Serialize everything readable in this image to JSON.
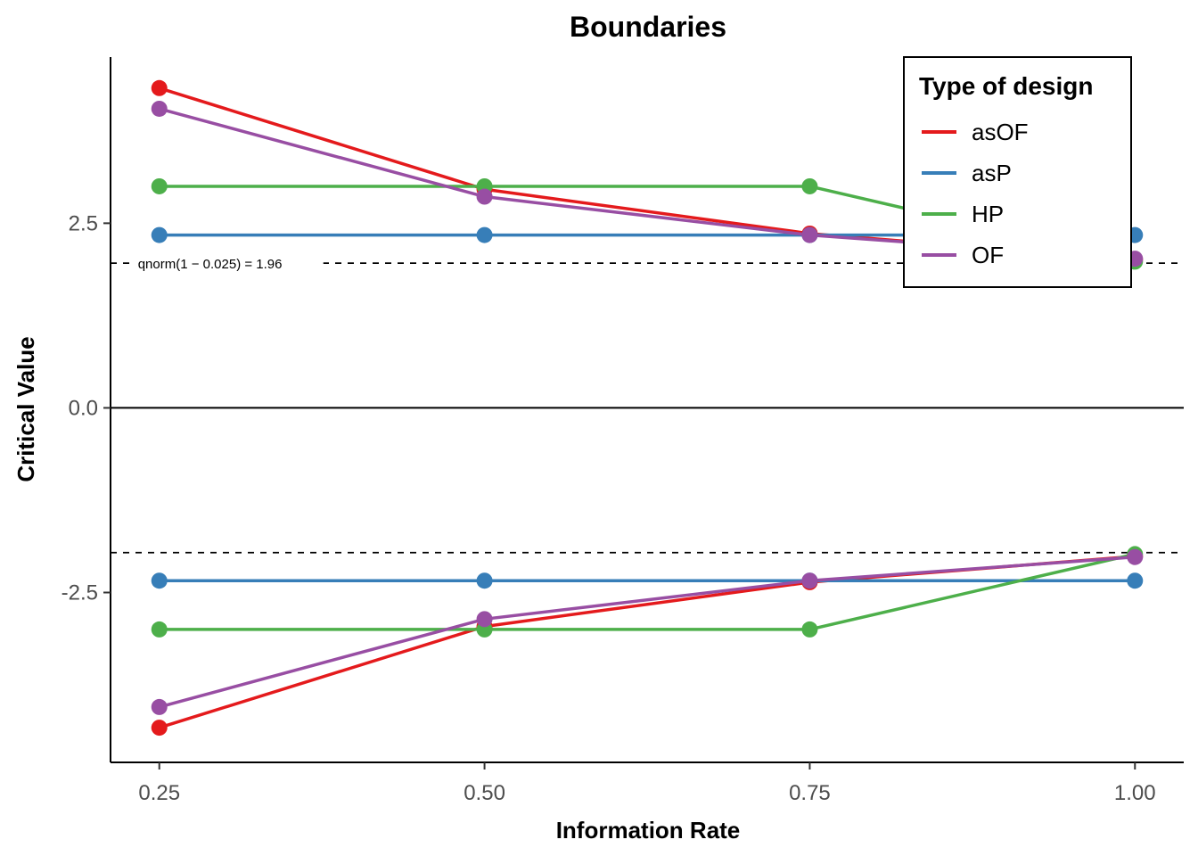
{
  "chart_data": {
    "type": "line",
    "title": "Boundaries",
    "xlabel": "Information Rate",
    "ylabel": "Critical Value",
    "x": [
      0.25,
      0.5,
      0.75,
      1.0
    ],
    "x_tick_labels": [
      "0.25",
      "0.50",
      "0.75",
      "1.00"
    ],
    "y_ticks": [
      2.5,
      0.0,
      -2.5
    ],
    "y_tick_labels": [
      "2.5",
      "0.0",
      "-2.5"
    ],
    "xlim": [
      0.2125,
      1.0375
    ],
    "ylim": [
      -4.8,
      4.75
    ],
    "grid": false,
    "legend": {
      "title": "Type of design",
      "placement": "top-right"
    },
    "reference_lines": [
      {
        "y": 1.96,
        "style": "dashed",
        "label": "qnorm(1 − 0.025) = 1.96"
      },
      {
        "y": -1.96,
        "style": "dashed",
        "label": ""
      },
      {
        "y": 0,
        "style": "solid",
        "label": ""
      }
    ],
    "series": [
      {
        "name": "asOF",
        "color": "#E41A1C",
        "upper": [
          4.33,
          2.96,
          2.36,
          2.01
        ],
        "lower": [
          -4.33,
          -2.96,
          -2.36,
          -2.01
        ]
      },
      {
        "name": "asP",
        "color": "#377EB8",
        "upper": [
          2.34,
          2.34,
          2.34,
          2.34
        ],
        "lower": [
          -2.34,
          -2.34,
          -2.34,
          -2.34
        ]
      },
      {
        "name": "HP",
        "color": "#4DAF4A",
        "upper": [
          3.0,
          3.0,
          3.0,
          1.98
        ],
        "lower": [
          -3.0,
          -3.0,
          -3.0,
          -1.98
        ]
      },
      {
        "name": "OF",
        "color": "#984EA3",
        "upper": [
          4.05,
          2.86,
          2.34,
          2.02
        ],
        "lower": [
          -4.05,
          -2.86,
          -2.34,
          -2.02
        ]
      }
    ]
  }
}
